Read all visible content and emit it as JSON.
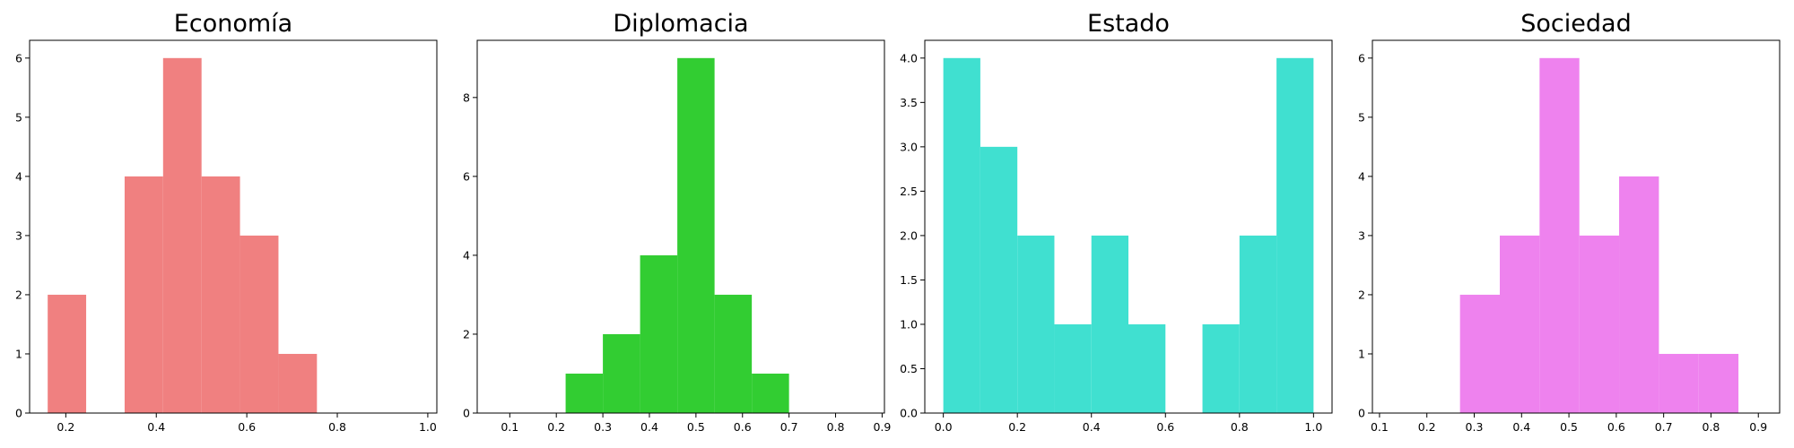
{
  "chart_data": [
    {
      "type": "bar",
      "title": "Economía",
      "color": "#F08080",
      "xlim": [
        0.12,
        1.02
      ],
      "ylim": [
        0,
        6.3
      ],
      "xticks": [
        {
          "value": 0.2,
          "label": "0.2"
        },
        {
          "value": 0.4,
          "label": "0.4"
        },
        {
          "value": 0.6,
          "label": "0.6"
        },
        {
          "value": 0.8,
          "label": "0.8"
        },
        {
          "value": 1.0,
          "label": "1.0"
        }
      ],
      "yticks": [
        {
          "value": 0,
          "label": "0"
        },
        {
          "value": 1,
          "label": "1"
        },
        {
          "value": 2,
          "label": "2"
        },
        {
          "value": 3,
          "label": "3"
        },
        {
          "value": 4,
          "label": "4"
        },
        {
          "value": 5,
          "label": "5"
        },
        {
          "value": 6,
          "label": "6"
        }
      ],
      "bins": [
        {
          "x0": 0.16,
          "x1": 0.245,
          "count": 2
        },
        {
          "x0": 0.245,
          "x1": 0.33,
          "count": 0
        },
        {
          "x0": 0.33,
          "x1": 0.415,
          "count": 4
        },
        {
          "x0": 0.415,
          "x1": 0.5,
          "count": 6
        },
        {
          "x0": 0.5,
          "x1": 0.585,
          "count": 4
        },
        {
          "x0": 0.585,
          "x1": 0.67,
          "count": 3
        },
        {
          "x0": 0.67,
          "x1": 0.755,
          "count": 1
        }
      ]
    },
    {
      "type": "bar",
      "title": "Diplomacia",
      "color": "#32CD32",
      "xlim": [
        0.03,
        0.905
      ],
      "ylim": [
        0,
        9.45
      ],
      "xticks": [
        {
          "value": 0.1,
          "label": "0.1"
        },
        {
          "value": 0.2,
          "label": "0.2"
        },
        {
          "value": 0.3,
          "label": "0.3"
        },
        {
          "value": 0.4,
          "label": "0.4"
        },
        {
          "value": 0.5,
          "label": "0.5"
        },
        {
          "value": 0.6,
          "label": "0.6"
        },
        {
          "value": 0.7,
          "label": "0.7"
        },
        {
          "value": 0.8,
          "label": "0.8"
        },
        {
          "value": 0.9,
          "label": "0.9"
        }
      ],
      "yticks": [
        {
          "value": 0,
          "label": "0"
        },
        {
          "value": 2,
          "label": "2"
        },
        {
          "value": 4,
          "label": "4"
        },
        {
          "value": 6,
          "label": "6"
        },
        {
          "value": 8,
          "label": "8"
        }
      ],
      "bins": [
        {
          "x0": 0.22,
          "x1": 0.3,
          "count": 1
        },
        {
          "x0": 0.3,
          "x1": 0.38,
          "count": 2
        },
        {
          "x0": 0.38,
          "x1": 0.46,
          "count": 4
        },
        {
          "x0": 0.46,
          "x1": 0.54,
          "count": 9
        },
        {
          "x0": 0.54,
          "x1": 0.62,
          "count": 3
        },
        {
          "x0": 0.62,
          "x1": 0.7,
          "count": 1
        }
      ]
    },
    {
      "type": "bar",
      "title": "Estado",
      "color": "#40E0D0",
      "xlim": [
        -0.05,
        1.05
      ],
      "ylim": [
        0,
        4.2
      ],
      "xticks": [
        {
          "value": 0.0,
          "label": "0.0"
        },
        {
          "value": 0.2,
          "label": "0.2"
        },
        {
          "value": 0.4,
          "label": "0.4"
        },
        {
          "value": 0.6,
          "label": "0.6"
        },
        {
          "value": 0.8,
          "label": "0.8"
        },
        {
          "value": 1.0,
          "label": "1.0"
        }
      ],
      "yticks": [
        {
          "value": 0,
          "label": "0.0"
        },
        {
          "value": 0.5,
          "label": "0.5"
        },
        {
          "value": 1.0,
          "label": "1.0"
        },
        {
          "value": 1.5,
          "label": "1.5"
        },
        {
          "value": 2.0,
          "label": "2.0"
        },
        {
          "value": 2.5,
          "label": "2.5"
        },
        {
          "value": 3.0,
          "label": "3.0"
        },
        {
          "value": 3.5,
          "label": "3.5"
        },
        {
          "value": 4.0,
          "label": "4.0"
        }
      ],
      "bins": [
        {
          "x0": 0.0,
          "x1": 0.1,
          "count": 4
        },
        {
          "x0": 0.1,
          "x1": 0.2,
          "count": 3
        },
        {
          "x0": 0.2,
          "x1": 0.3,
          "count": 2
        },
        {
          "x0": 0.3,
          "x1": 0.4,
          "count": 1
        },
        {
          "x0": 0.4,
          "x1": 0.5,
          "count": 2
        },
        {
          "x0": 0.5,
          "x1": 0.6,
          "count": 1
        },
        {
          "x0": 0.6,
          "x1": 0.7,
          "count": 0
        },
        {
          "x0": 0.7,
          "x1": 0.8,
          "count": 1
        },
        {
          "x0": 0.8,
          "x1": 0.9,
          "count": 2
        },
        {
          "x0": 0.9,
          "x1": 1.0,
          "count": 4
        }
      ]
    },
    {
      "type": "bar",
      "title": "Sociedad",
      "color": "#EE82EE",
      "xlim": [
        0.085,
        0.945
      ],
      "ylim": [
        0,
        6.3
      ],
      "xticks": [
        {
          "value": 0.1,
          "label": "0.1"
        },
        {
          "value": 0.2,
          "label": "0.2"
        },
        {
          "value": 0.3,
          "label": "0.3"
        },
        {
          "value": 0.4,
          "label": "0.4"
        },
        {
          "value": 0.5,
          "label": "0.5"
        },
        {
          "value": 0.6,
          "label": "0.6"
        },
        {
          "value": 0.7,
          "label": "0.7"
        },
        {
          "value": 0.8,
          "label": "0.8"
        },
        {
          "value": 0.9,
          "label": "0.9"
        }
      ],
      "yticks": [
        {
          "value": 0,
          "label": "0"
        },
        {
          "value": 1,
          "label": "1"
        },
        {
          "value": 2,
          "label": "2"
        },
        {
          "value": 3,
          "label": "3"
        },
        {
          "value": 4,
          "label": "4"
        },
        {
          "value": 5,
          "label": "5"
        },
        {
          "value": 6,
          "label": "6"
        }
      ],
      "bins": [
        {
          "x0": 0.27,
          "x1": 0.354,
          "count": 2
        },
        {
          "x0": 0.354,
          "x1": 0.438,
          "count": 3
        },
        {
          "x0": 0.438,
          "x1": 0.522,
          "count": 6
        },
        {
          "x0": 0.522,
          "x1": 0.606,
          "count": 3
        },
        {
          "x0": 0.606,
          "x1": 0.69,
          "count": 4
        },
        {
          "x0": 0.69,
          "x1": 0.774,
          "count": 1
        },
        {
          "x0": 0.774,
          "x1": 0.858,
          "count": 1
        }
      ]
    }
  ]
}
